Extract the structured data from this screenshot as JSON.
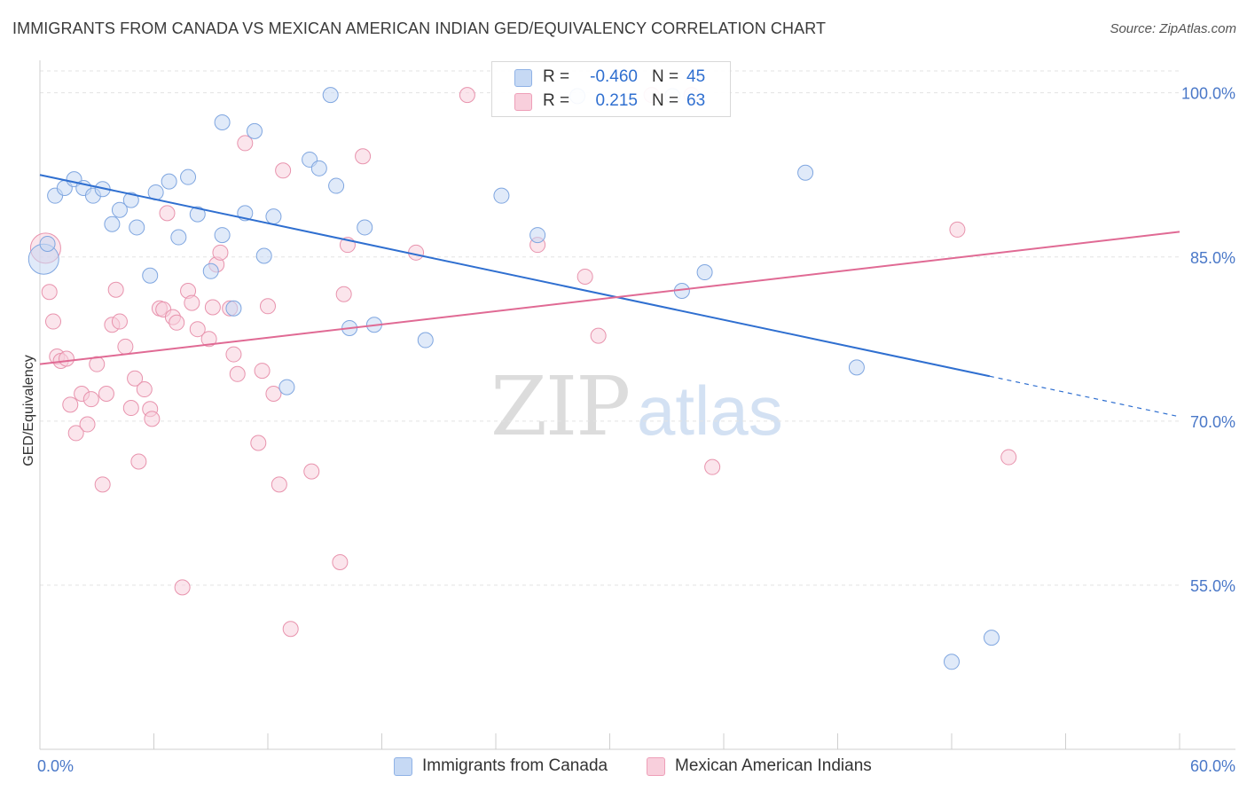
{
  "header": {
    "title": "IMMIGRANTS FROM CANADA VS MEXICAN AMERICAN INDIAN GED/EQUIVALENCY CORRELATION CHART",
    "source": "Source: ZipAtlas.com"
  },
  "watermark": {
    "zip": "ZIP",
    "atlas": "atlas"
  },
  "legend_top": {
    "rows": [
      {
        "r_label": "R =",
        "r_value": "-0.460",
        "n_label": "N =",
        "n_value": "45"
      },
      {
        "r_label": "R =",
        "r_value": "0.215",
        "n_label": "N =",
        "n_value": "63"
      }
    ]
  },
  "chart_data": {
    "type": "scatter",
    "title": "IMMIGRANTS FROM CANADA VS MEXICAN AMERICAN INDIAN GED/EQUIVALENCY CORRELATION CHART",
    "xlabel": "",
    "ylabel": "GED/Equivalency",
    "xlim": [
      0,
      60
    ],
    "ylim": [
      40,
      102
    ],
    "x_tick_labels": [
      "0.0%",
      "60.0%"
    ],
    "y_ticks": [
      55,
      70,
      85,
      100
    ],
    "y_tick_labels": [
      "55.0%",
      "70.0%",
      "85.0%",
      "100.0%"
    ],
    "grid": true,
    "legend_position": "bottom",
    "colors": {
      "canada": "#a9c6ee",
      "canada_line": "#2f6fd0",
      "mexican": "#f4b6c9",
      "mexican_line": "#e06a94"
    },
    "series": [
      {
        "name": "Immigrants from Canada",
        "trend": {
          "x0": 0,
          "y0": 92.5,
          "x1": 50,
          "y1": 74.1,
          "dash_to_x": 60,
          "dash_to_y": 70.4
        },
        "points": [
          {
            "x": 0.2,
            "y": 84.8,
            "big": true
          },
          {
            "x": 0.8,
            "y": 90.6
          },
          {
            "x": 1.3,
            "y": 91.3
          },
          {
            "x": 1.8,
            "y": 92.1
          },
          {
            "x": 2.3,
            "y": 91.3
          },
          {
            "x": 2.8,
            "y": 90.6
          },
          {
            "x": 3.3,
            "y": 91.2
          },
          {
            "x": 3.8,
            "y": 88.0
          },
          {
            "x": 4.2,
            "y": 89.3
          },
          {
            "x": 4.8,
            "y": 90.2
          },
          {
            "x": 5.1,
            "y": 87.7
          },
          {
            "x": 5.8,
            "y": 83.3
          },
          {
            "x": 6.1,
            "y": 90.9
          },
          {
            "x": 6.8,
            "y": 91.9
          },
          {
            "x": 7.3,
            "y": 86.8
          },
          {
            "x": 7.8,
            "y": 92.3
          },
          {
            "x": 8.3,
            "y": 88.9
          },
          {
            "x": 9.0,
            "y": 83.7
          },
          {
            "x": 9.6,
            "y": 87.0
          },
          {
            "x": 9.6,
            "y": 97.3
          },
          {
            "x": 10.2,
            "y": 80.3
          },
          {
            "x": 10.8,
            "y": 89.0
          },
          {
            "x": 11.3,
            "y": 96.5
          },
          {
            "x": 11.8,
            "y": 85.1
          },
          {
            "x": 12.3,
            "y": 88.7
          },
          {
            "x": 13.0,
            "y": 73.1
          },
          {
            "x": 14.2,
            "y": 93.9
          },
          {
            "x": 14.7,
            "y": 93.1
          },
          {
            "x": 15.3,
            "y": 99.8
          },
          {
            "x": 15.6,
            "y": 91.5
          },
          {
            "x": 16.3,
            "y": 78.5
          },
          {
            "x": 17.1,
            "y": 87.7
          },
          {
            "x": 17.6,
            "y": 78.8
          },
          {
            "x": 20.3,
            "y": 77.4
          },
          {
            "x": 24.3,
            "y": 90.6
          },
          {
            "x": 26.2,
            "y": 87.0
          },
          {
            "x": 28.3,
            "y": 99.7
          },
          {
            "x": 33.3,
            "y": 99.7
          },
          {
            "x": 33.8,
            "y": 81.9
          },
          {
            "x": 35.0,
            "y": 83.6
          },
          {
            "x": 40.3,
            "y": 92.7
          },
          {
            "x": 43.0,
            "y": 74.9
          },
          {
            "x": 48.0,
            "y": 48.0
          },
          {
            "x": 50.1,
            "y": 50.2
          },
          {
            "x": 0.4,
            "y": 86.2
          }
        ]
      },
      {
        "name": "Mexican American Indians",
        "trend": {
          "x0": 0,
          "y0": 75.2,
          "x1": 60,
          "y1": 87.3
        },
        "points": [
          {
            "x": 0.3,
            "y": 85.8,
            "big": true
          },
          {
            "x": 0.5,
            "y": 81.8
          },
          {
            "x": 0.7,
            "y": 79.1
          },
          {
            "x": 0.9,
            "y": 75.9
          },
          {
            "x": 1.1,
            "y": 75.5
          },
          {
            "x": 1.4,
            "y": 75.7
          },
          {
            "x": 1.6,
            "y": 71.5
          },
          {
            "x": 1.9,
            "y": 68.9
          },
          {
            "x": 2.2,
            "y": 72.5
          },
          {
            "x": 2.5,
            "y": 69.7
          },
          {
            "x": 2.7,
            "y": 72.0
          },
          {
            "x": 3.0,
            "y": 75.2
          },
          {
            "x": 3.3,
            "y": 64.2
          },
          {
            "x": 3.5,
            "y": 72.5
          },
          {
            "x": 3.8,
            "y": 78.8
          },
          {
            "x": 4.0,
            "y": 82.0
          },
          {
            "x": 4.2,
            "y": 79.1
          },
          {
            "x": 4.5,
            "y": 76.8
          },
          {
            "x": 4.8,
            "y": 71.2
          },
          {
            "x": 5.0,
            "y": 73.9
          },
          {
            "x": 5.2,
            "y": 66.3
          },
          {
            "x": 5.5,
            "y": 72.9
          },
          {
            "x": 5.8,
            "y": 71.1
          },
          {
            "x": 5.9,
            "y": 70.2
          },
          {
            "x": 6.3,
            "y": 80.3
          },
          {
            "x": 6.5,
            "y": 80.2
          },
          {
            "x": 6.7,
            "y": 89.0
          },
          {
            "x": 7.0,
            "y": 79.5
          },
          {
            "x": 7.2,
            "y": 79.0
          },
          {
            "x": 7.5,
            "y": 54.8
          },
          {
            "x": 7.8,
            "y": 81.9
          },
          {
            "x": 8.0,
            "y": 80.8
          },
          {
            "x": 8.3,
            "y": 78.4
          },
          {
            "x": 8.9,
            "y": 77.5
          },
          {
            "x": 9.1,
            "y": 80.4
          },
          {
            "x": 9.3,
            "y": 84.3
          },
          {
            "x": 9.5,
            "y": 85.4
          },
          {
            "x": 10.0,
            "y": 80.3
          },
          {
            "x": 10.2,
            "y": 76.1
          },
          {
            "x": 10.4,
            "y": 74.3
          },
          {
            "x": 10.8,
            "y": 95.4
          },
          {
            "x": 11.5,
            "y": 68.0
          },
          {
            "x": 11.7,
            "y": 74.6
          },
          {
            "x": 12.0,
            "y": 80.5
          },
          {
            "x": 12.3,
            "y": 72.5
          },
          {
            "x": 12.6,
            "y": 64.2
          },
          {
            "x": 12.8,
            "y": 92.9
          },
          {
            "x": 13.2,
            "y": 51.0
          },
          {
            "x": 14.3,
            "y": 65.4
          },
          {
            "x": 15.8,
            "y": 57.1
          },
          {
            "x": 16.0,
            "y": 81.6
          },
          {
            "x": 16.2,
            "y": 86.1
          },
          {
            "x": 17.0,
            "y": 94.2
          },
          {
            "x": 19.8,
            "y": 85.4
          },
          {
            "x": 22.5,
            "y": 99.8
          },
          {
            "x": 26.2,
            "y": 86.1
          },
          {
            "x": 28.7,
            "y": 83.2
          },
          {
            "x": 29.4,
            "y": 77.8
          },
          {
            "x": 32.2,
            "y": 99.8
          },
          {
            "x": 34.3,
            "y": 99.8
          },
          {
            "x": 35.4,
            "y": 65.8
          },
          {
            "x": 48.3,
            "y": 87.5
          },
          {
            "x": 51.0,
            "y": 66.7
          }
        ]
      }
    ]
  }
}
